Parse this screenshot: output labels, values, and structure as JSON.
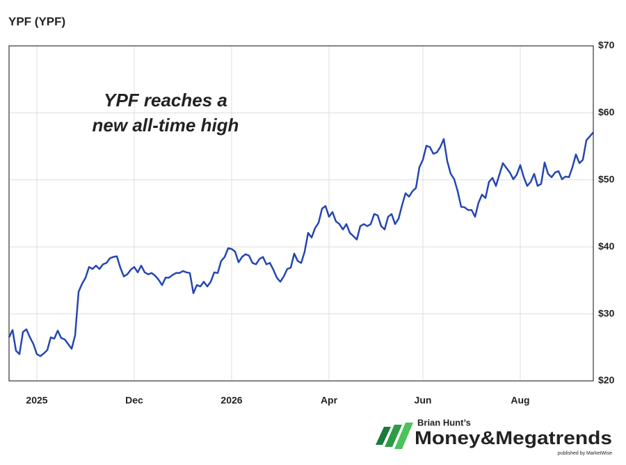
{
  "chart_data": {
    "type": "line",
    "title": "YPF (YPF)",
    "annotation": [
      "YPF reaches a",
      "new all-time high"
    ],
    "categories": [
      null,
      null,
      null,
      null,
      null,
      null,
      null,
      null,
      "2025",
      null,
      null,
      null,
      null,
      null,
      null,
      null,
      null,
      null,
      null,
      null,
      null,
      null,
      null,
      null,
      null,
      null,
      null,
      null,
      null,
      null,
      null,
      null,
      null,
      null,
      null,
      null,
      "Dec",
      null,
      null,
      null,
      null,
      null,
      null,
      null,
      null,
      null,
      null,
      null,
      null,
      null,
      null,
      null,
      null,
      null,
      null,
      null,
      null,
      null,
      null,
      null,
      null,
      null,
      null,
      null,
      "2026",
      null,
      null,
      null,
      null,
      null,
      null,
      null,
      null,
      null,
      null,
      null,
      null,
      null,
      null,
      null,
      null,
      null,
      null,
      null,
      null,
      null,
      null,
      null,
      null,
      null,
      null,
      null,
      "Apr",
      null,
      null,
      null,
      null,
      null,
      null,
      null,
      null,
      null,
      null,
      null,
      null,
      null,
      null,
      null,
      null,
      null,
      null,
      null,
      null,
      null,
      null,
      null,
      null,
      null,
      null,
      "Jun",
      null,
      null,
      null,
      null,
      null,
      null,
      null,
      null,
      null,
      null,
      null,
      null,
      null,
      null,
      null,
      null,
      null,
      null,
      null,
      null,
      null,
      null,
      null,
      null,
      null,
      null,
      null,
      "Aug",
      null,
      null,
      null,
      null,
      null,
      null,
      null,
      null,
      null,
      null,
      null,
      null,
      null,
      null,
      null,
      null,
      null,
      null,
      null,
      null,
      null
    ],
    "series": [
      {
        "name": "YPF",
        "color": "#2446b0",
        "values": [
          26.5,
          27.6,
          24.5,
          24.0,
          27.3,
          27.7,
          26.5,
          25.5,
          24.0,
          23.7,
          24.1,
          24.6,
          26.5,
          26.3,
          27.5,
          26.4,
          26.2,
          25.5,
          24.8,
          26.8,
          33.3,
          34.5,
          35.4,
          37.0,
          36.7,
          37.2,
          36.7,
          37.4,
          37.6,
          38.3,
          38.5,
          38.6,
          36.9,
          35.6,
          35.9,
          36.6,
          37.0,
          36.2,
          37.2,
          36.2,
          35.9,
          36.1,
          35.7,
          35.1,
          34.3,
          35.4,
          35.4,
          35.8,
          36.1,
          36.1,
          36.4,
          36.2,
          36.1,
          33.1,
          34.3,
          34.1,
          34.8,
          34.1,
          34.8,
          36.2,
          36.1,
          37.9,
          38.5,
          39.8,
          39.7,
          39.3,
          37.7,
          38.5,
          38.9,
          38.7,
          37.6,
          37.4,
          38.2,
          38.5,
          37.4,
          37.6,
          36.6,
          35.4,
          34.8,
          35.6,
          36.7,
          36.9,
          39.0,
          37.9,
          37.6,
          39.3,
          42.1,
          41.4,
          42.8,
          43.6,
          45.7,
          46.1,
          44.5,
          45.2,
          43.8,
          43.4,
          42.6,
          43.4,
          42.1,
          41.6,
          41.1,
          43.1,
          43.4,
          43.1,
          43.4,
          44.9,
          44.7,
          43.1,
          42.6,
          44.5,
          44.9,
          43.4,
          44.2,
          46.2,
          48.0,
          47.5,
          48.3,
          48.8,
          51.9,
          53.0,
          55.1,
          54.9,
          53.9,
          54.1,
          54.9,
          56.1,
          52.8,
          50.9,
          50.1,
          48.3,
          46.0,
          45.9,
          45.5,
          45.5,
          44.5,
          46.6,
          47.8,
          47.3,
          49.7,
          50.3,
          49.1,
          50.8,
          52.5,
          51.8,
          51.1,
          50.1,
          50.8,
          52.2,
          50.4,
          49.1,
          49.7,
          50.9,
          49.1,
          49.4,
          52.6,
          50.9,
          50.4,
          51.1,
          51.3,
          50.1,
          50.5,
          50.4,
          51.9,
          53.8,
          52.5,
          53.0,
          55.9,
          56.5,
          57.1
        ]
      }
    ],
    "ylim": [
      20,
      70
    ],
    "yticks": [
      {
        "value": 20,
        "label": "$20"
      },
      {
        "value": 30,
        "label": "$30"
      },
      {
        "value": 40,
        "label": "$40"
      },
      {
        "value": 50,
        "label": "$50"
      },
      {
        "value": 60,
        "label": "$60"
      },
      {
        "value": 70,
        "label": "$70"
      }
    ],
    "grid": true
  },
  "branding": {
    "author": "Brian Hunt’s",
    "name": "Money&Megatrends",
    "publisher": "published by MarketWise"
  }
}
